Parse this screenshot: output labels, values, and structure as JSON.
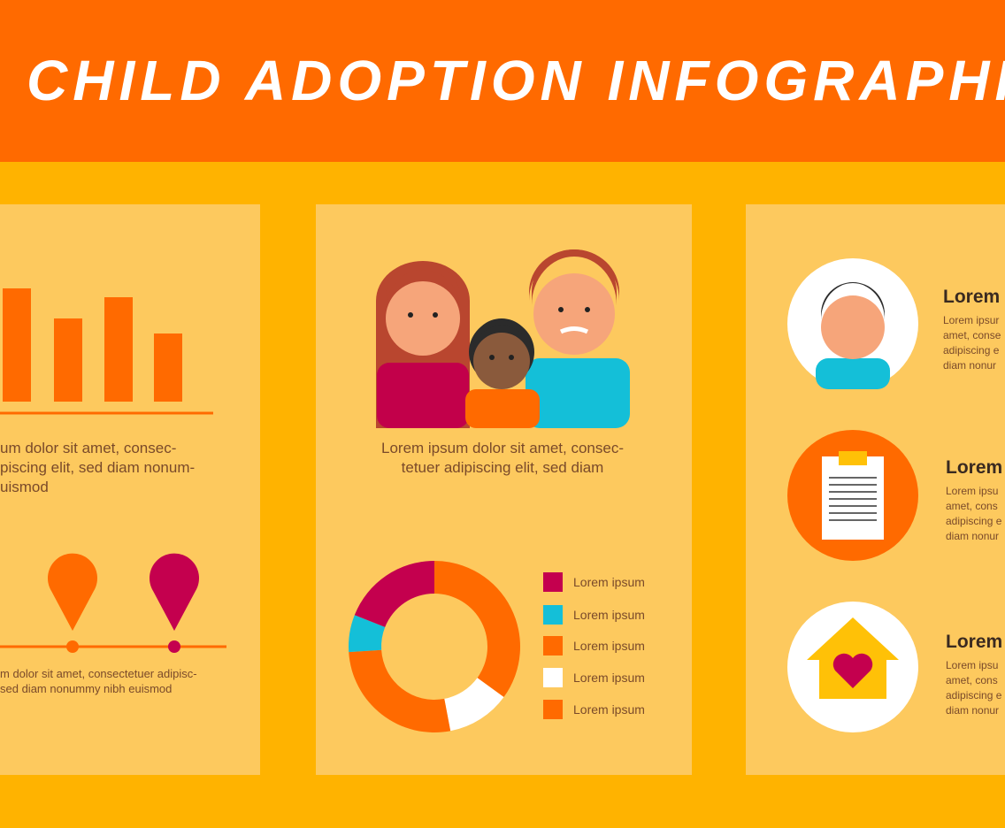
{
  "header": {
    "title": "CHILD ADOPTION INFOGRAPHIC"
  },
  "left_panel": {
    "bar_chart": {
      "type": "bar",
      "values": [
        128,
        94,
        118,
        77
      ],
      "color": "#ff6a00"
    },
    "text": [
      "um dolor sit amet, consec-",
      "piscing elit, sed diam nonum-",
      "uismod"
    ],
    "pin_text": [
      "m dolor sit amet, consectetuer adipisc-",
      "sed diam nonummy nibh euismod"
    ]
  },
  "middle_panel": {
    "caption": [
      "Lorem ipsum dolor sit amet, consec-",
      "tetuer adipiscing elit, sed diam"
    ],
    "donut": {
      "type": "donut",
      "categories": [
        "Lorem ipsum",
        "Lorem ipsum",
        "Lorem ipsum",
        "Lorem ipsum",
        "Lorem ipsum"
      ],
      "values": [
        19,
        7,
        27,
        12,
        35
      ],
      "colors": [
        "#c4004e",
        "#14bfd8",
        "#ff6a00",
        "#ffffff",
        "#ff6a00"
      ]
    }
  },
  "right_panel": {
    "items": [
      {
        "heading": "Lorem",
        "text": [
          "Lorem ipsur",
          "amet, conse",
          "adipiscing e",
          "diam nonur"
        ]
      },
      {
        "heading": "Lorem",
        "text": [
          "Lorem ipsu",
          "amet, cons",
          "adipiscing e",
          "diam nonur"
        ]
      },
      {
        "heading": "Lorem",
        "text": [
          "Lorem ipsu",
          "amet, cons",
          "adipiscing e",
          "diam nonur"
        ]
      }
    ]
  }
}
